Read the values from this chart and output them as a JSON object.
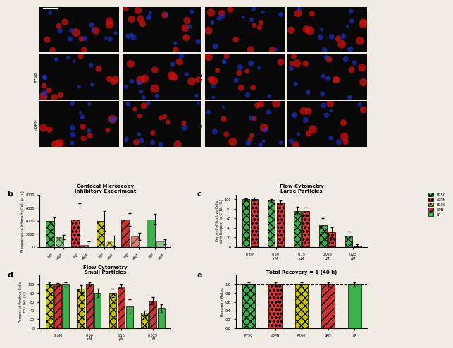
{
  "title_b": "Confocal Microscopy",
  "subtitle_b": "Inhibitory Experiment",
  "title_c": "Flow Cytometry",
  "subtitle_c": "Large Particles",
  "title_d": "Flow Cytometry",
  "subtitle_d": "Small Particles",
  "title_e": "Total Recovery = 1 (40 h)",
  "panel_b": {
    "b_data": [
      {
        "label": "P750",
        "v1": 4000,
        "v2": 1500,
        "e1": 500,
        "e2": 300,
        "color": "#3cb34a",
        "hatch": "xxx"
      },
      {
        "label": "rDPN",
        "v1": 4200,
        "v2": 300,
        "e1": 2500,
        "e2": 500,
        "color": "#e83030",
        "hatch": "ooo"
      },
      {
        "label": "P200",
        "v1": 4000,
        "v2": 900,
        "e1": 1500,
        "e2": 800,
        "color": "#c8c800",
        "hatch": "xxx"
      },
      {
        "label": "SPN",
        "v1": 4200,
        "v2": 1600,
        "e1": 1000,
        "e2": 500,
        "color": "#cc3333",
        "hatch": "///"
      },
      {
        "label": "LP",
        "v1": 4200,
        "v2": 800,
        "e1": 800,
        "e2": 400,
        "color": "#3cb34a",
        "hatch": "==="
      }
    ],
    "ylabel": "Fluorescence Intensity/Cell (a.u.)",
    "ylim": [
      0,
      8000
    ],
    "yticks": [
      0,
      2000,
      4000,
      6000,
      8000
    ]
  },
  "panel_c": {
    "labels": [
      "0 nM",
      "0.50\nnM",
      "0.15\nµM",
      "0.025\nµM",
      "0.25\nµM"
    ],
    "P750": [
      100,
      97,
      76,
      46,
      23
    ],
    "rDPN": [
      100,
      93,
      75,
      31,
      3
    ],
    "eP750": [
      2,
      3,
      8,
      15,
      10
    ],
    "erDPN": [
      3,
      5,
      8,
      10,
      2
    ],
    "ylabel": "Percent of Positive Cells\nwith Respect to CTRL (%)",
    "ylim": [
      0,
      110
    ],
    "yticks": [
      0,
      20,
      40,
      60,
      80,
      100
    ]
  },
  "panel_d": {
    "labels": [
      "0 nM",
      "0.50\nnM",
      "0.15\nµM",
      "0.025\nµM"
    ],
    "P200": [
      100,
      90,
      80,
      35
    ],
    "SPN": [
      100,
      100,
      95,
      63
    ],
    "LP": [
      100,
      80,
      50,
      45
    ],
    "eP200": [
      5,
      8,
      10,
      5
    ],
    "eSPN": [
      3,
      4,
      5,
      8
    ],
    "eLP": [
      5,
      10,
      15,
      10
    ],
    "ylabel": "Percent of Positive Cells\nto CTRL (%)",
    "ylim": [
      0,
      120
    ],
    "yticks": [
      0,
      20,
      40,
      60,
      80,
      100
    ]
  },
  "panel_e": {
    "bars": [
      1.0,
      1.0,
      1.0,
      1.0,
      1.0
    ],
    "labels": [
      "P750",
      "rDPN",
      "P200",
      "SPN",
      "LP"
    ],
    "colors": [
      "#3cb34a",
      "#e83030",
      "#c8c800",
      "#cc3333",
      "#3cb34a"
    ],
    "hatches": [
      "xxx",
      "ooo",
      "xxx",
      "///",
      "==="
    ],
    "errors": [
      0.05,
      0.05,
      0.05,
      0.05,
      0.05
    ],
    "ylabel": "Recovery Rates",
    "ylim": [
      0,
      1.2
    ],
    "yticks": [
      0.0,
      0.2,
      0.4,
      0.6,
      0.8,
      1.0
    ]
  },
  "legend_info": [
    {
      "label": "P750",
      "color": "#3cb34a",
      "hatch": "xxx"
    },
    {
      "label": "rDPN",
      "color": "#e83030",
      "hatch": "ooo"
    },
    {
      "label": "P200",
      "color": "#c8c800",
      "hatch": "xxx"
    },
    {
      "label": "SPN",
      "color": "#cc3333",
      "hatch": "///"
    },
    {
      "label": "LP",
      "color": "#3cb34a",
      "hatch": "==="
    }
  ],
  "bg_color": "#f0ece4"
}
